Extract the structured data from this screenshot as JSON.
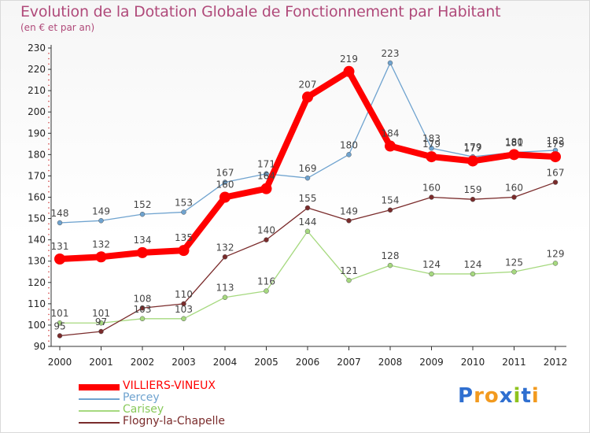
{
  "title": "Evolution de la Dotation Globale de Fonctionnement par Habitant",
  "subtitle": "(en € et par an)",
  "logo": "Proxiti",
  "chart_data": {
    "type": "line",
    "x": [
      "2000",
      "2001",
      "2002",
      "2003",
      "2004",
      "2005",
      "2006",
      "2007",
      "2008",
      "2009",
      "2010",
      "2011",
      "2012"
    ],
    "ylim": [
      90,
      230
    ],
    "yticks": [
      90,
      100,
      110,
      120,
      130,
      140,
      150,
      160,
      170,
      180,
      190,
      200,
      210,
      220,
      230
    ],
    "grid": false,
    "legend_position": "bottom-left",
    "series": [
      {
        "name": "Percey",
        "color": "#6fa3cf",
        "width": 1.3,
        "marker": 3,
        "show_labels": true,
        "values": [
          148,
          149,
          152,
          153,
          167,
          171,
          169,
          180,
          223,
          183,
          179,
          181,
          182
        ]
      },
      {
        "name": "Carisey",
        "color": "#a6d97f",
        "width": 1.3,
        "marker": 3,
        "show_labels": true,
        "values": [
          101,
          101,
          103,
          103,
          113,
          116,
          144,
          121,
          128,
          124,
          124,
          125,
          129
        ]
      },
      {
        "name": "Flogny-la-Chapelle",
        "color": "#7a2b2b",
        "width": 1.3,
        "marker": 3,
        "show_labels": true,
        "values": [
          95,
          97,
          108,
          110,
          132,
          140,
          155,
          149,
          154,
          160,
          159,
          160,
          167
        ]
      },
      {
        "name": "VILLIERS-VINEUX",
        "color": "#ff0000",
        "width": 8,
        "marker": 7,
        "show_labels": true,
        "values": [
          131,
          132,
          134,
          135,
          160,
          164,
          207,
          219,
          184,
          179,
          177,
          180,
          179
        ]
      }
    ]
  },
  "legend_order": [
    "VILLIERS-VINEUX",
    "Percey",
    "Carisey",
    "Flogny-la-Chapelle"
  ]
}
